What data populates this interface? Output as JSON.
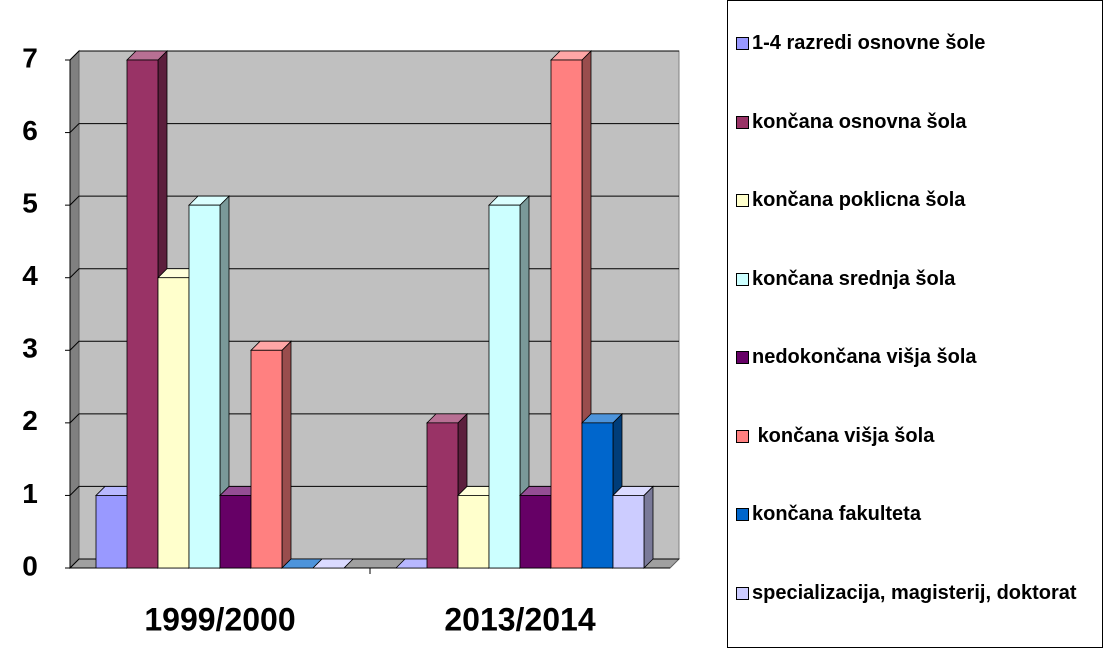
{
  "chart_data": {
    "type": "bar3d",
    "categories": [
      "1999/2000",
      "2013/2014"
    ],
    "series": [
      {
        "name": "1-4 razredi osnovne šole",
        "color": "#9999ff",
        "values": [
          1,
          0
        ]
      },
      {
        "name": "končana osnovna šola",
        "color": "#993366",
        "values": [
          7,
          2
        ]
      },
      {
        "name": "končana poklicna šola",
        "color": "#ffffcc",
        "values": [
          4,
          1
        ]
      },
      {
        "name": "končana srednja šola",
        "color": "#ccffff",
        "values": [
          5,
          5
        ]
      },
      {
        "name": "nedokončana višja šola",
        "color": "#660066",
        "values": [
          1,
          1
        ]
      },
      {
        "name": " končana višja šola",
        "color": "#ff8080",
        "values": [
          3,
          7
        ]
      },
      {
        "name": "končana fakulteta",
        "color": "#0066cc",
        "values": [
          0,
          2
        ]
      },
      {
        "name": "specializacija, magisterij, doktorat",
        "color": "#ccccff",
        "values": [
          0,
          1
        ]
      }
    ],
    "ylim": [
      0,
      7
    ],
    "yticks": [
      0,
      1,
      2,
      3,
      4,
      5,
      6,
      7
    ],
    "grid": true,
    "legend": "right"
  }
}
